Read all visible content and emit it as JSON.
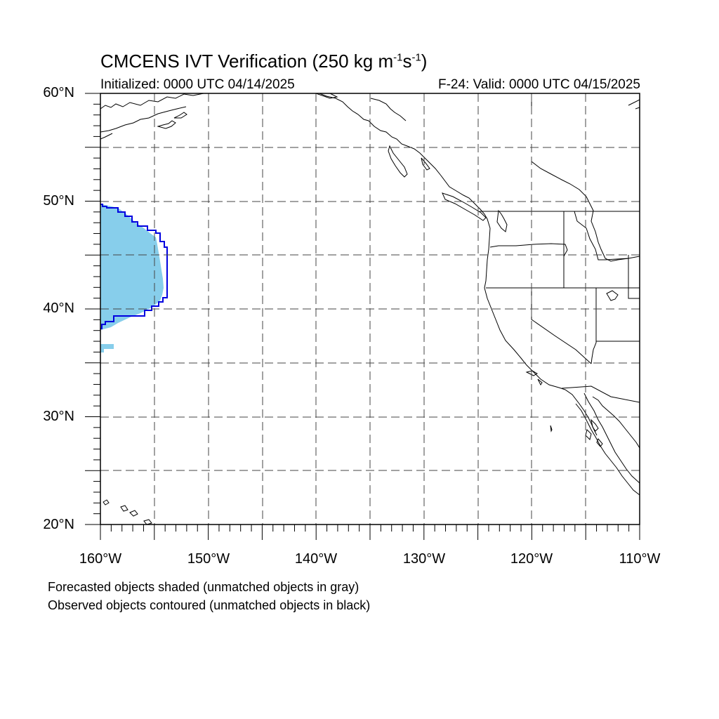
{
  "title": {
    "main": "CMCENS IVT Verification (250 kg m",
    "sup1": "-1",
    "mid": "s",
    "sup2": "-1",
    "close": ")"
  },
  "init_text": "Initialized: 0000 UTC 04/14/2025",
  "valid_text": "F-24: Valid: 0000 UTC 04/15/2025",
  "lat_labels": [
    "60°N",
    "50°N",
    "40°N",
    "30°N",
    "20°N"
  ],
  "lon_labels": [
    "160°W",
    "150°W",
    "140°W",
    "130°W",
    "120°W",
    "110°W"
  ],
  "notes": {
    "forecast": "Forecasted objects shaded (unmatched objects in gray)",
    "observed": "Observed objects contoured (unmatched objects in black)"
  },
  "colors": {
    "forecast_fill": "#87CEEB",
    "observed_contour": "#0000E0",
    "coast": "#000000",
    "grid": "#444444"
  },
  "map_extent": {
    "lon_min": -160,
    "lon_max": -110,
    "lat_min": 20,
    "lat_max": 60
  }
}
